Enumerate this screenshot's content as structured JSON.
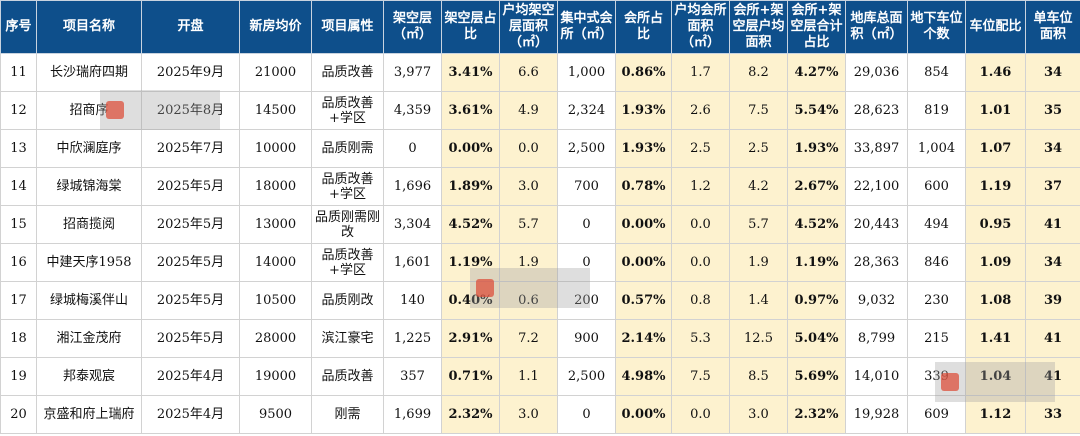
{
  "headers": [
    "序号",
    "项目名称",
    "开盘",
    "新房均价",
    "项目属性",
    "架空层（㎡）",
    "架空层占比",
    "户均架空层面积（㎡）",
    "集中式会所（㎡）",
    "会所占比",
    "户均会所面积（㎡）",
    "会所+架空层户均面积",
    "会所+架空层合计占比",
    "地库总面积（㎡）",
    "地下车位个数",
    "车位配比",
    "单车位面积"
  ],
  "rows": [
    [
      "11",
      "长沙瑞府四期",
      "2025年9月",
      "21000",
      "品质改善",
      "3,977",
      "3.41%",
      "6.6",
      "1,000",
      "0.86%",
      "1.7",
      "8.2",
      "4.27%",
      "29,036",
      "854",
      "1.46",
      "34"
    ],
    [
      "12",
      "招商序",
      "2025年8月",
      "14500",
      "品质改善+学区",
      "4,359",
      "3.61%",
      "4.9",
      "2,324",
      "1.93%",
      "2.6",
      "7.5",
      "5.54%",
      "28,623",
      "819",
      "1.01",
      "35"
    ],
    [
      "13",
      "中欣澜庭序",
      "2025年7月",
      "10000",
      "品质刚需",
      "0",
      "0.00%",
      "0.0",
      "2,500",
      "1.93%",
      "2.5",
      "2.5",
      "1.93%",
      "33,897",
      "1,004",
      "1.07",
      "34"
    ],
    [
      "14",
      "绿城锦海棠",
      "2025年5月",
      "18000",
      "品质改善+学区",
      "1,696",
      "1.89%",
      "3.0",
      "700",
      "0.78%",
      "1.2",
      "4.2",
      "2.67%",
      "22,100",
      "600",
      "1.19",
      "37"
    ],
    [
      "15",
      "招商揽阅",
      "2025年5月",
      "13000",
      "品质刚需刚改",
      "3,304",
      "4.52%",
      "5.7",
      "0",
      "0.00%",
      "0.0",
      "5.7",
      "4.52%",
      "20,443",
      "494",
      "0.95",
      "41"
    ],
    [
      "16",
      "中建天序1958",
      "2025年5月",
      "14000",
      "品质改善+学区",
      "1,601",
      "1.19%",
      "1.9",
      "0",
      "0.00%",
      "0.0",
      "1.9",
      "1.19%",
      "28,363",
      "846",
      "1.09",
      "34"
    ],
    [
      "17",
      "绿城梅溪伴山",
      "2025年5月",
      "10500",
      "品质刚改",
      "140",
      "0.40%",
      "0.6",
      "200",
      "0.57%",
      "0.8",
      "1.4",
      "0.97%",
      "9,032",
      "230",
      "1.08",
      "39"
    ],
    [
      "18",
      "湘江金茂府",
      "2025年5月",
      "28000",
      "滨江豪宅",
      "1,225",
      "2.91%",
      "7.2",
      "900",
      "2.14%",
      "5.3",
      "12.5",
      "5.04%",
      "8,799",
      "215",
      "1.41",
      "41"
    ],
    [
      "19",
      "邦泰观宸",
      "2025年4月",
      "19000",
      "品质改善",
      "357",
      "0.71%",
      "1.1",
      "2,500",
      "4.98%",
      "7.5",
      "8.5",
      "5.69%",
      "14,010",
      "339",
      "1.04",
      "41"
    ],
    [
      "20",
      "京盛和府上瑞府",
      "2025年4月",
      "9500",
      "刚需",
      "1,699",
      "2.32%",
      "3.0",
      "0",
      "0.00%",
      "0.0",
      "3.0",
      "2.32%",
      "19,928",
      "609",
      "1.12",
      "33"
    ]
  ],
  "highlight_columns": [
    6,
    9,
    12,
    15,
    16
  ],
  "yellow_columns": [
    7,
    10,
    11
  ],
  "colors": {
    "header_bg": "#0e4f8b",
    "highlight_bg": "#fdf2cf"
  }
}
